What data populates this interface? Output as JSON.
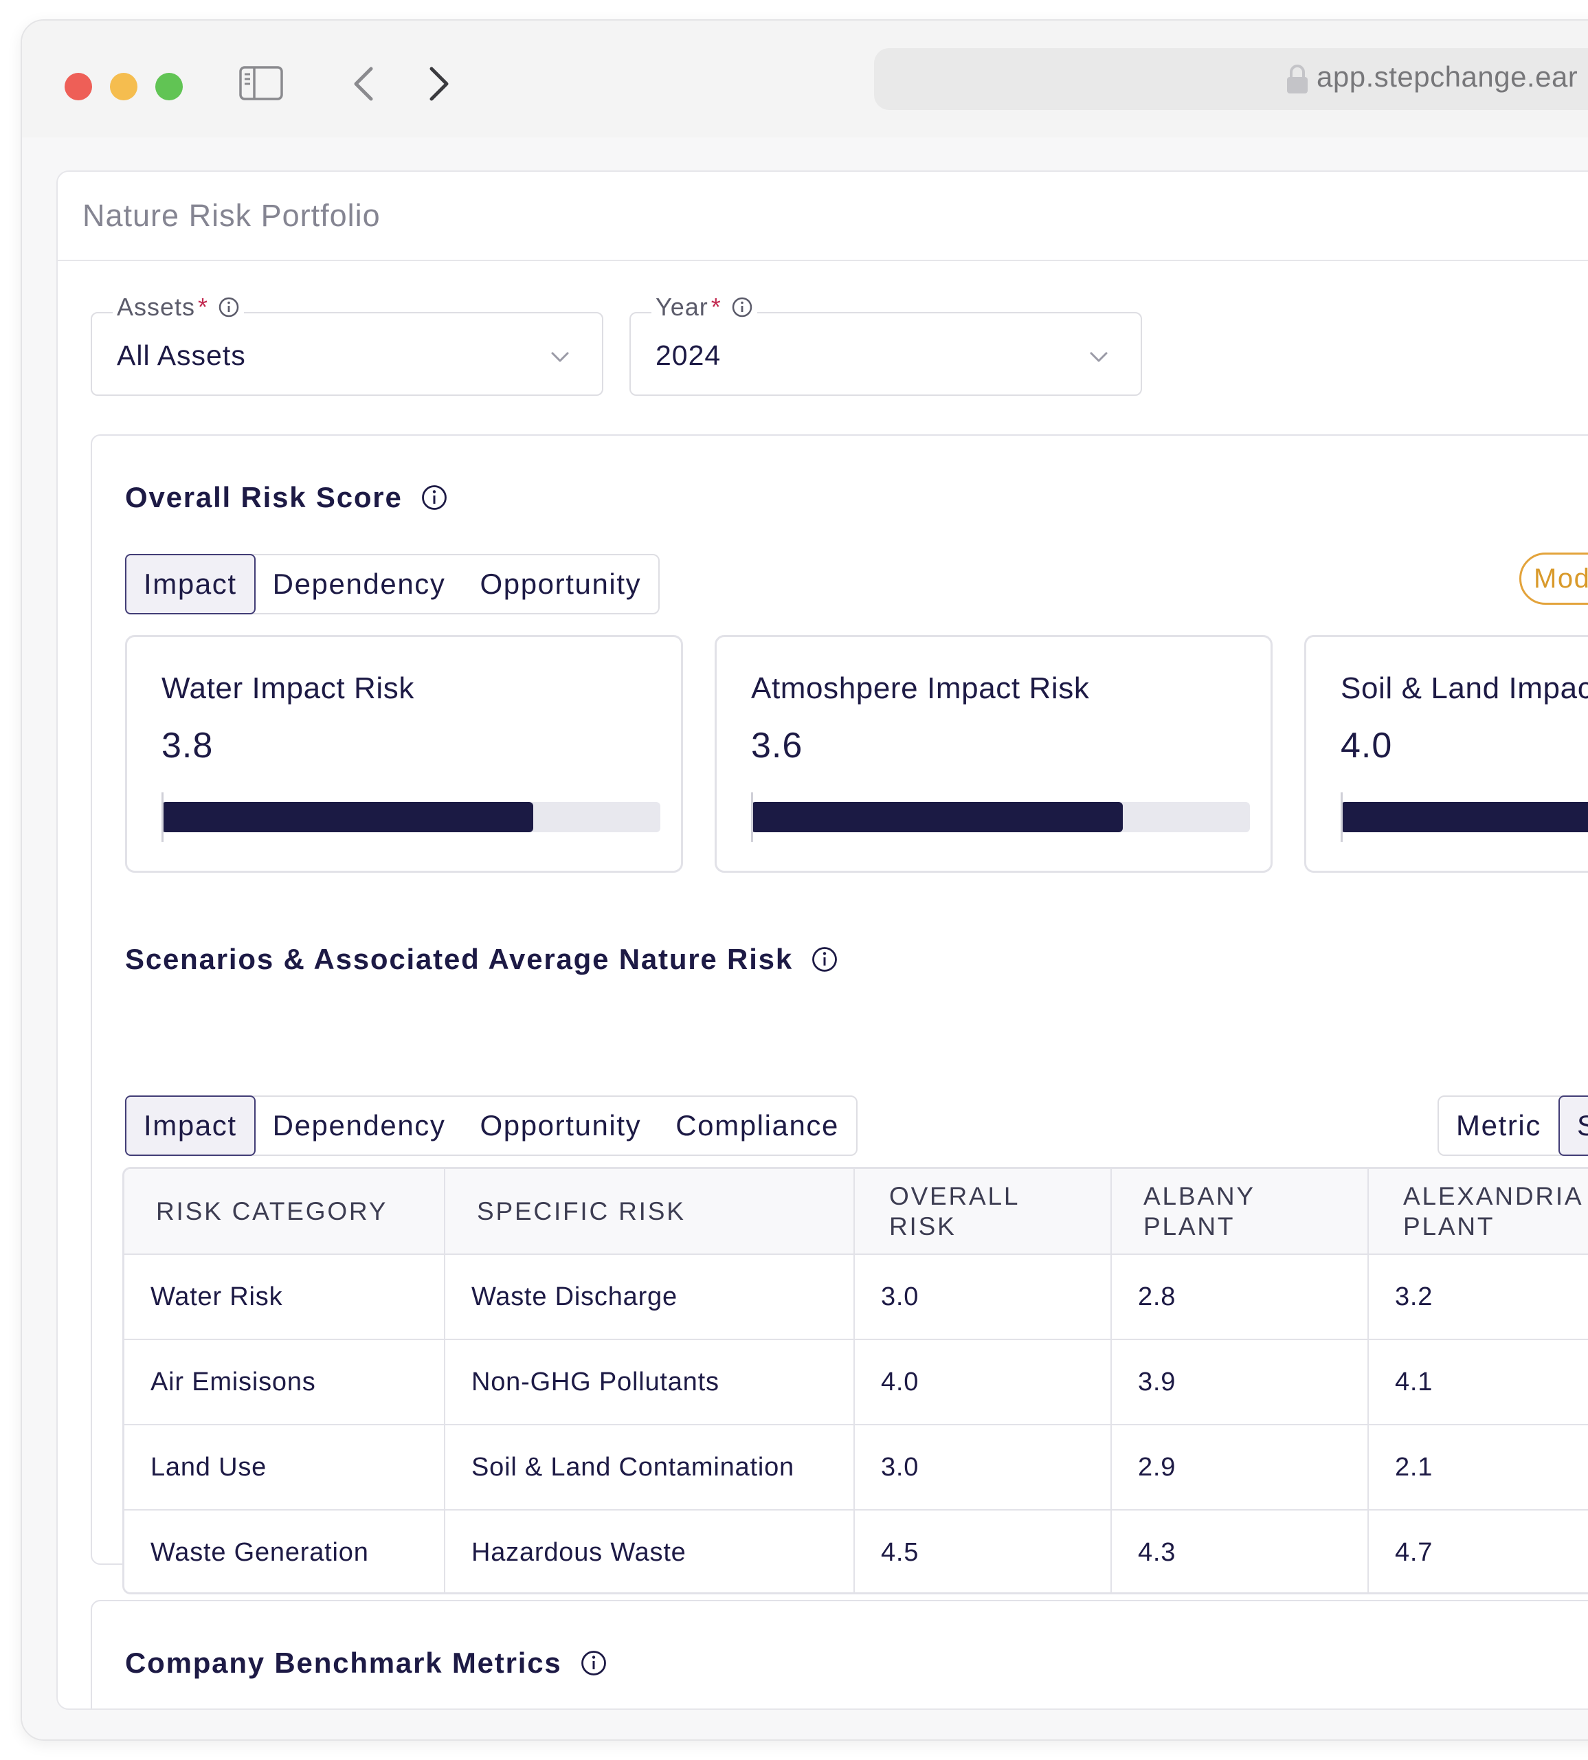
{
  "browser": {
    "url": "app.stepchange.ear"
  },
  "page": {
    "title": "Nature Risk Portfolio"
  },
  "filters": {
    "assets": {
      "label": "Assets",
      "required_mark": "*",
      "value": "All Assets"
    },
    "year": {
      "label": "Year",
      "required_mark": "*",
      "value": "2024"
    }
  },
  "overall_risk": {
    "title": "Overall Risk Score",
    "tabs": [
      "Impact",
      "Dependency",
      "Opportunity"
    ],
    "active_tab": "Impact",
    "badge": "Moderat",
    "badge_color": "#e3a33b",
    "metrics": [
      {
        "label": "Water Impact Risk",
        "value": "3.8",
        "fill_fraction": 0.745
      },
      {
        "label": "Atmoshpere Impact Risk",
        "value": "3.6",
        "fill_fraction": 0.745
      },
      {
        "label": "Soil & Land Impac",
        "value": "4.0",
        "fill_fraction": 1.0
      }
    ]
  },
  "scenarios": {
    "title": "Scenarios & Associated Average Nature Risk",
    "tabs": [
      "Impact",
      "Dependency",
      "Opportunity",
      "Compliance"
    ],
    "active_tab": "Impact",
    "view_toggle": [
      "Metric",
      "Scor"
    ],
    "active_view": "Scor",
    "table": {
      "headers": [
        "RISK CATEGORY",
        "SPECIFIC RISK",
        "OVERALL RISK",
        "ALBANY PLANT",
        "ALEXANDRIA PLANT"
      ],
      "rows": [
        [
          "Water Risk",
          "Waste Discharge",
          "3.0",
          "2.8",
          "3.2"
        ],
        [
          "Air Emisisons",
          "Non-GHG Pollutants",
          "4.0",
          "3.9",
          "4.1"
        ],
        [
          "Land Use",
          "Soil & Land Contamination",
          "3.0",
          "2.9",
          "2.1"
        ],
        [
          "Waste Generation",
          "Hazardous Waste",
          "4.5",
          "4.3",
          "4.7"
        ]
      ]
    }
  },
  "benchmark": {
    "title": "Company Benchmark Metrics"
  },
  "colors": {
    "primary": "#1b1a44",
    "accent_border": "#423d76",
    "required": "#c2284f",
    "moderate": "#e3a33b"
  }
}
